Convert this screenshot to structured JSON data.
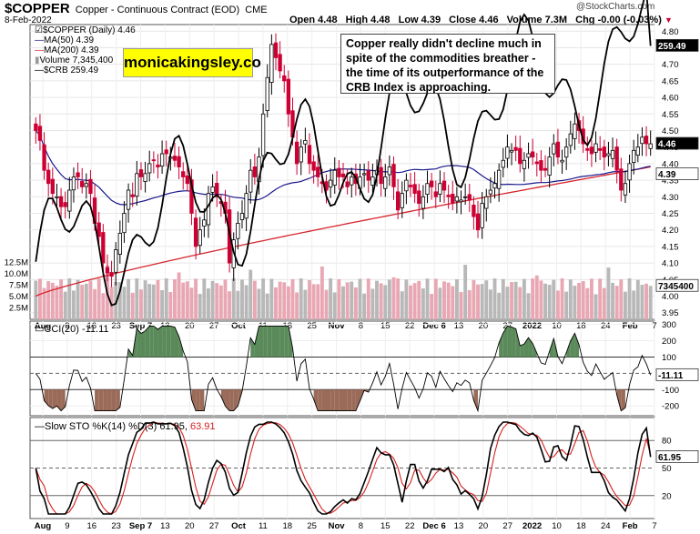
{
  "header": {
    "symbol": "$COPPER",
    "description": "Copper - Continuous Contract (EOD)",
    "exchange": "CME",
    "date": "8-Feb-2022",
    "open": "Open 4.48",
    "high": "High 4.48",
    "low": "Low 4.39",
    "close": "Close 4.46",
    "volume": "Volume 7.3M",
    "chg": "Chg -0.00 (-0.03%)",
    "watermark": "@StockCharts.com"
  },
  "annotation": {
    "brand": "monicakingsley.co",
    "note": "Copper really didn't decline much in spite of the commodities breather - the time of its outperformance of the CRB Index is approaching."
  },
  "legend": {
    "price": "$COPPER (Daily) 4.46",
    "ma50": "MA(50) 4.39",
    "ma200": "MA(200) 4.39",
    "volume": "Volume 7,345,400",
    "crb": "$CRB 259.49",
    "cci": "CCI(20) -11.11",
    "sto_prefix": "Slow STO %K(14) %D(3) 61.95,",
    "sto_d": "63.91"
  },
  "colors": {
    "up": "#000000",
    "down": "#cc0033",
    "ma50": "#1a1a8c",
    "ma200": "#d6262f",
    "volume_up": "#b8b8b8",
    "volume_down": "#e8a7b3",
    "cci_pos": "#5a8a5a",
    "cci_neg": "#9b6b5a",
    "sto_k": "#000000",
    "sto_d": "#d62020"
  },
  "chart_data": [
    {
      "type": "candlestick",
      "title": "$COPPER (Daily)",
      "x_tick_labels": [
        "Aug",
        "9",
        "16",
        "23",
        "Sep7",
        "13",
        "20",
        "27",
        "Oct",
        "11",
        "18",
        "25",
        "Nov",
        "8",
        "15",
        "22",
        "Dec6",
        "13",
        "20",
        "27",
        "2022",
        "10",
        "18",
        "24",
        "Feb",
        "7"
      ],
      "y_tick_labels": [
        "3.95",
        "4.00",
        "4.05",
        "4.10",
        "4.15",
        "4.20",
        "4.25",
        "4.30",
        "4.35",
        "4.40",
        "4.45",
        "4.50",
        "4.55",
        "4.60",
        "4.65",
        "4.70",
        "4.75",
        "4.80"
      ],
      "ylim": [
        3.93,
        4.82
      ],
      "close_callout": "4.46",
      "ma50_callout": "4.39",
      "ma50_last": 4.39,
      "ma200_last": 4.39,
      "closes": [
        4.5,
        4.47,
        4.38,
        4.34,
        4.31,
        4.3,
        4.27,
        4.27,
        4.32,
        4.36,
        4.36,
        4.33,
        4.34,
        4.31,
        4.22,
        4.18,
        4.1,
        4.07,
        4.06,
        4.14,
        4.19,
        4.25,
        4.32,
        4.3,
        4.37,
        4.36,
        4.37,
        4.4,
        4.41,
        4.39,
        4.43,
        4.43,
        4.42,
        4.41,
        4.39,
        4.36,
        4.34,
        4.25,
        4.15,
        4.2,
        4.23,
        4.31,
        4.33,
        4.3,
        4.28,
        4.25,
        4.1,
        4.17,
        4.22,
        4.25,
        4.31,
        4.38,
        4.36,
        4.42,
        4.55,
        4.66,
        4.76,
        4.72,
        4.68,
        4.65,
        4.55,
        4.48,
        4.4,
        4.45,
        4.47,
        4.4,
        4.38,
        4.36,
        4.34,
        4.32,
        4.35,
        4.38,
        4.36,
        4.36,
        4.33,
        4.36,
        4.34,
        4.36,
        4.37,
        4.35,
        4.36,
        4.38,
        4.34,
        4.36,
        4.39,
        4.33,
        4.26,
        4.31,
        4.35,
        4.33,
        4.31,
        4.28,
        4.3,
        4.34,
        4.33,
        4.3,
        4.34,
        4.32,
        4.3,
        4.28,
        4.3,
        4.29,
        4.3,
        4.29,
        4.24,
        4.2,
        4.28,
        4.3,
        4.32,
        4.34,
        4.38,
        4.41,
        4.45,
        4.44,
        4.44,
        4.4,
        4.41,
        4.43,
        4.42,
        4.4,
        4.38,
        4.38,
        4.42,
        4.46,
        4.42,
        4.41,
        4.45,
        4.49,
        4.52,
        4.5,
        4.46,
        4.44,
        4.43,
        4.46,
        4.44,
        4.42,
        4.43,
        4.44,
        4.38,
        4.32,
        4.34,
        4.4,
        4.44,
        4.45,
        4.48,
        4.46,
        4.46
      ],
      "volume_ylabels": [
        "2.5M",
        "5.0M",
        "7.5M",
        "10.0M",
        "12.5M"
      ],
      "volume_callout": "7345400",
      "volume_last": 7.35,
      "crb_callout": "259.49",
      "crb_last": 259.49
    },
    {
      "type": "line",
      "title": "CCI(20)",
      "y_tick_labels": [
        "300",
        "200",
        "100",
        "0",
        "-100",
        "-200"
      ],
      "ylim": [
        -260,
        320
      ],
      "last_callout": "-11.11",
      "last": -11.11
    },
    {
      "type": "line",
      "title": "Slow STO %K(14) %D(3)",
      "y_tick_labels": [
        "80",
        "50",
        "20"
      ],
      "ylim": [
        0,
        100
      ],
      "series": [
        {
          "name": "%K(14)",
          "last": 61.95
        },
        {
          "name": "%D(3)",
          "last": 63.91
        }
      ],
      "last_callout": "61.95"
    }
  ]
}
